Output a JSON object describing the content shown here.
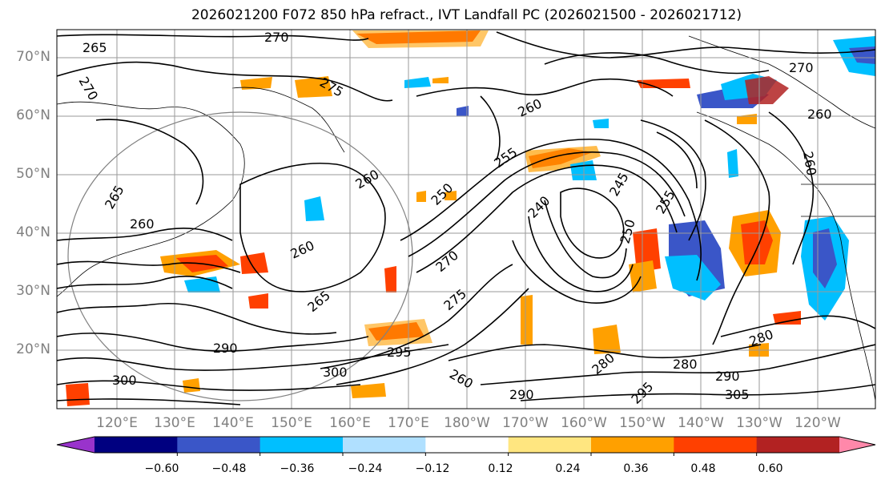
{
  "title": "2026021200 F072 850 hPa refract., IVT Landfall PC (2026021500 - 2026021712)",
  "latitude_labels": [
    "70°N",
    "60°N",
    "50°N",
    "40°N",
    "30°N",
    "20°N"
  ],
  "longitude_labels": [
    "120°E",
    "130°E",
    "140°E",
    "150°E",
    "160°E",
    "170°E",
    "180°W",
    "170°W",
    "160°W",
    "150°W",
    "140°W",
    "130°W",
    "120°W"
  ],
  "contour_labels": [
    "270",
    "265",
    "270",
    "275",
    "260",
    "260",
    "255",
    "260",
    "250",
    "240",
    "245",
    "255",
    "265",
    "260",
    "260",
    "260",
    "270",
    "250",
    "265",
    "270",
    "275",
    "290",
    "280",
    "280",
    "280",
    "290",
    "300",
    "300",
    "295",
    "290",
    "295",
    "305",
    "260"
  ],
  "colorbar": {
    "tick_labels": [
      "−0.60",
      "−0.48",
      "−0.36",
      "−0.24",
      "−0.12",
      "0.12",
      "0.24",
      "0.36",
      "0.48",
      "0.60"
    ],
    "colors": [
      "#9933cc",
      "#000080",
      "#3a56c8",
      "#00bfff",
      "#b0e0ff",
      "#ffffff",
      "#ffe680",
      "#ffa000",
      "#ff4000",
      "#b22222",
      "#ff88aa"
    ]
  }
}
